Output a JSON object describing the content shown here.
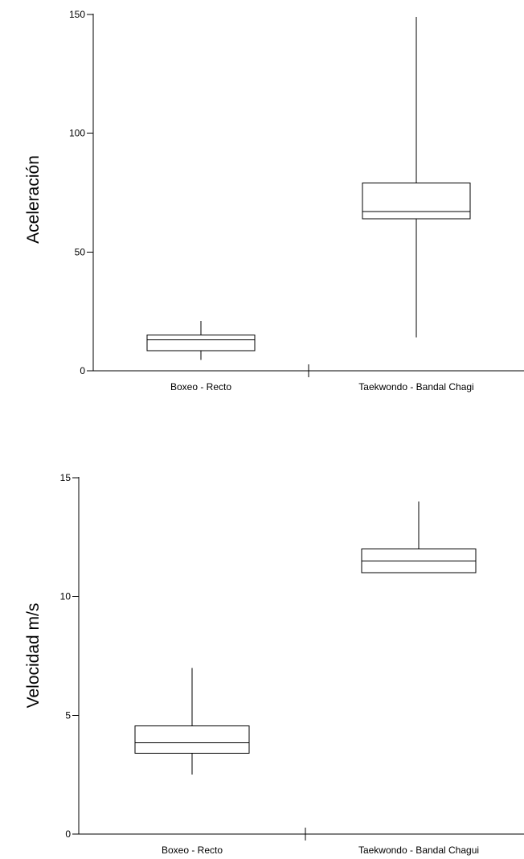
{
  "chart_data": [
    {
      "type": "boxplot",
      "ylabel": "Aceleración",
      "ylim": [
        0,
        150
      ],
      "yticks": [
        0,
        50,
        100,
        150
      ],
      "categories": [
        "Boxeo - Recto",
        "Taekwondo - Bandal Chagi"
      ],
      "boxes": [
        {
          "category": "Boxeo - Recto",
          "min": 4.5,
          "q1": 8.5,
          "median": 13,
          "q3": 15,
          "max": 21
        },
        {
          "category": "Taekwondo - Bandal Chagi",
          "min": 14,
          "q1": 64,
          "median": 67,
          "q3": 79,
          "max": 149
        }
      ],
      "grid": false
    },
    {
      "type": "boxplot",
      "ylabel": "Velocidad m/s",
      "ylim": [
        0,
        15
      ],
      "yticks": [
        0,
        5,
        10,
        15
      ],
      "categories": [
        "Boxeo - Recto",
        "Taekwondo - Bandal Chagui"
      ],
      "boxes": [
        {
          "category": "Boxeo - Recto",
          "min": 2.5,
          "q1": 3.4,
          "median": 3.85,
          "q3": 4.55,
          "max": 7.0
        },
        {
          "category": "Taekwondo - Bandal Chagui",
          "min": 11.0,
          "q1": 11.0,
          "median": 11.5,
          "q3": 12.0,
          "max": 14.0
        }
      ],
      "grid": false
    }
  ]
}
